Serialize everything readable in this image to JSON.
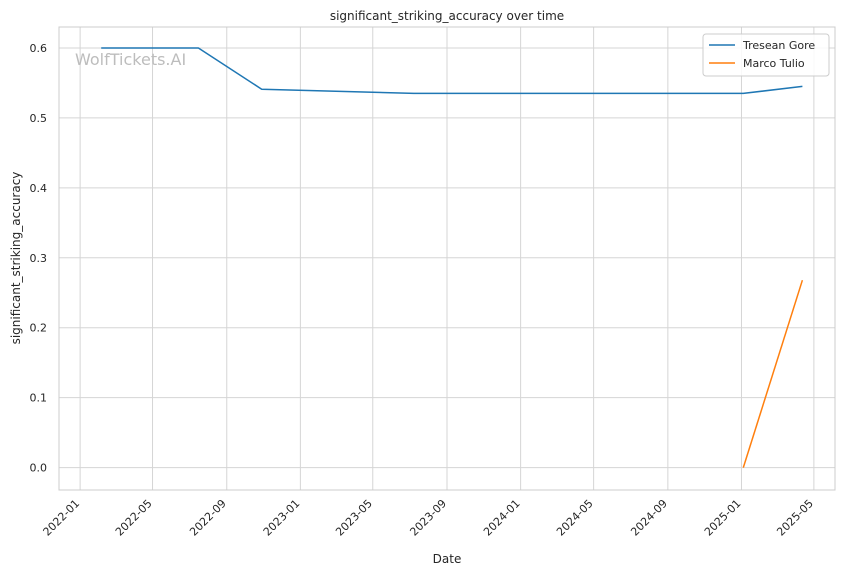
{
  "watermark": "WolfTickets.AI",
  "chart_data": {
    "type": "line",
    "title": "significant_striking_accuracy over time",
    "xlabel": "Date",
    "ylabel": "significant_striking_accuracy",
    "x_ticks": [
      "2022-01",
      "2022-05",
      "2022-09",
      "2023-01",
      "2023-05",
      "2023-09",
      "2024-01",
      "2024-05",
      "2024-09",
      "2025-01",
      "2025-05"
    ],
    "y_ticks": [
      "0.0",
      "0.1",
      "0.2",
      "0.3",
      "0.4",
      "0.5",
      "0.6"
    ],
    "xlim": [
      "2021-11-27",
      "2025-06-05"
    ],
    "ylim": [
      -0.032,
      0.63
    ],
    "grid": true,
    "legend": "top-right",
    "series": [
      {
        "name": "Tresean Gore",
        "color": "#1f77b4",
        "points": [
          {
            "x": "2022-02-05",
            "y": 0.6
          },
          {
            "x": "2022-07-16",
            "y": 0.6
          },
          {
            "x": "2022-10-29",
            "y": 0.541
          },
          {
            "x": "2023-07-08",
            "y": 0.535
          },
          {
            "x": "2025-01-04",
            "y": 0.535
          },
          {
            "x": "2025-04-12",
            "y": 0.545
          }
        ]
      },
      {
        "name": "Marco Tulio",
        "color": "#ff7f0e",
        "points": [
          {
            "x": "2025-01-04",
            "y": 0.0
          },
          {
            "x": "2025-04-12",
            "y": 0.268
          }
        ]
      }
    ]
  }
}
